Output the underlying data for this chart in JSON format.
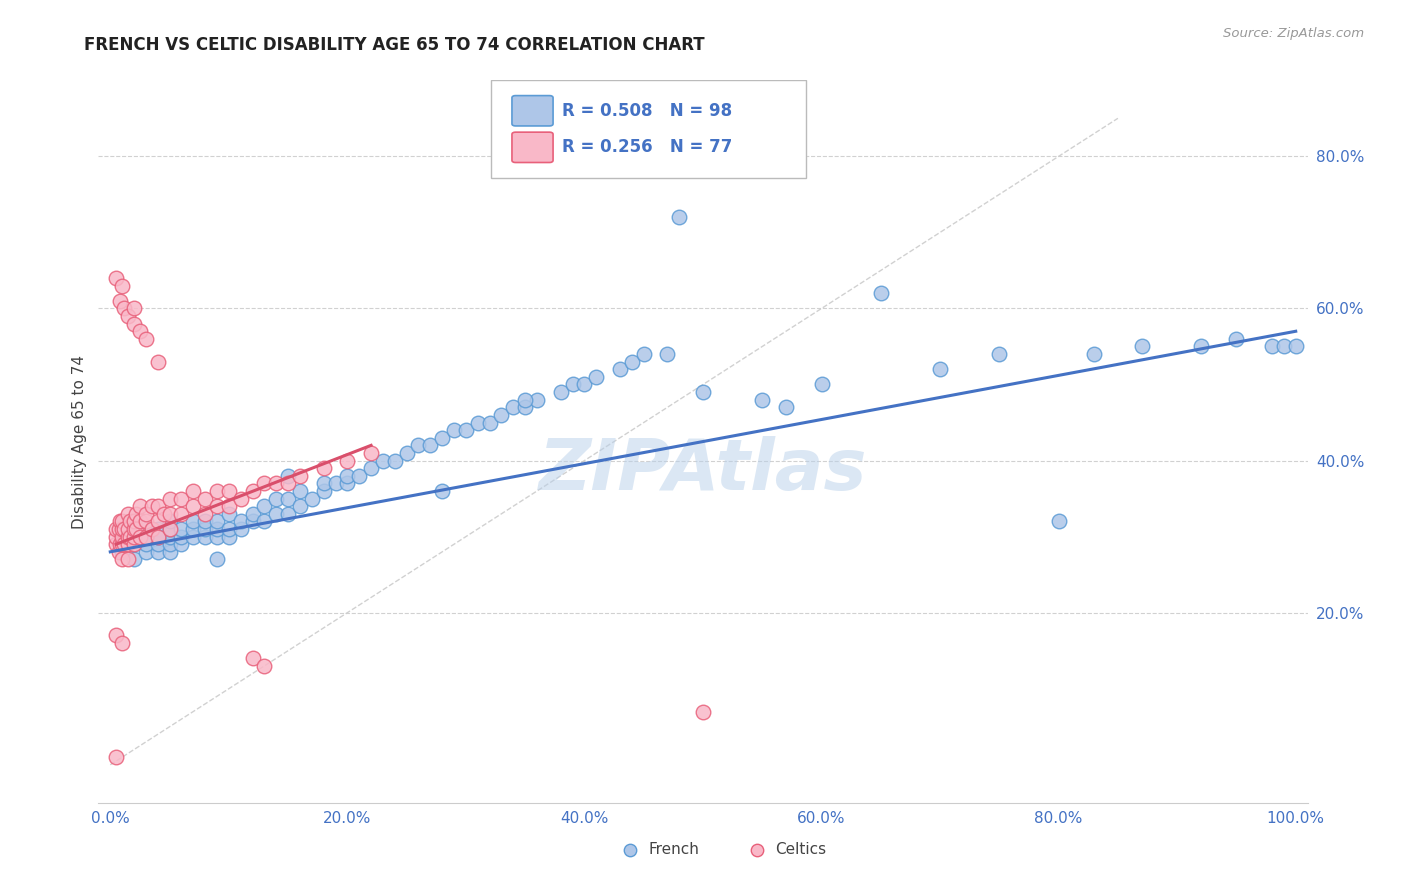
{
  "title": "FRENCH VS CELTIC DISABILITY AGE 65 TO 74 CORRELATION CHART",
  "source": "Source: ZipAtlas.com",
  "ylabel": "Disability Age 65 to 74",
  "xlim": [
    -0.01,
    1.01
  ],
  "ylim": [
    -0.05,
    0.9
  ],
  "xticks": [
    0.0,
    0.2,
    0.4,
    0.6,
    0.8,
    1.0
  ],
  "xtick_labels": [
    "0.0%",
    "20.0%",
    "40.0%",
    "60.0%",
    "80.0%",
    "100.0%"
  ],
  "ytick_positions": [
    0.2,
    0.4,
    0.6,
    0.8
  ],
  "ytick_labels": [
    "20.0%",
    "40.0%",
    "60.0%",
    "80.0%"
  ],
  "french_R": 0.508,
  "french_N": 98,
  "celtics_R": 0.256,
  "celtics_N": 77,
  "french_color": "#aec6e8",
  "celtics_color": "#f9b8c8",
  "french_edge_color": "#5b9bd5",
  "celtics_edge_color": "#e8607a",
  "french_line_color": "#4472c4",
  "celtics_line_color": "#d94f6b",
  "diagonal_color": "#c8c8c8",
  "text_color": "#4472c4",
  "watermark_color": "#b8d0ea",
  "french_x": [
    0.01,
    0.01,
    0.02,
    0.02,
    0.02,
    0.02,
    0.03,
    0.03,
    0.03,
    0.03,
    0.04,
    0.04,
    0.04,
    0.04,
    0.05,
    0.05,
    0.05,
    0.05,
    0.05,
    0.06,
    0.06,
    0.06,
    0.07,
    0.07,
    0.07,
    0.08,
    0.08,
    0.08,
    0.09,
    0.09,
    0.09,
    0.1,
    0.1,
    0.1,
    0.11,
    0.11,
    0.12,
    0.12,
    0.13,
    0.13,
    0.14,
    0.14,
    0.15,
    0.15,
    0.16,
    0.16,
    0.17,
    0.18,
    0.18,
    0.19,
    0.2,
    0.2,
    0.21,
    0.22,
    0.23,
    0.24,
    0.25,
    0.26,
    0.27,
    0.28,
    0.29,
    0.3,
    0.31,
    0.32,
    0.33,
    0.34,
    0.35,
    0.36,
    0.38,
    0.39,
    0.4,
    0.41,
    0.43,
    0.44,
    0.45,
    0.47,
    0.48,
    0.5,
    0.55,
    0.57,
    0.6,
    0.65,
    0.7,
    0.75,
    0.8,
    0.83,
    0.87,
    0.92,
    0.95,
    0.98,
    0.99,
    1.0,
    0.35,
    0.28,
    0.15,
    0.09,
    0.04,
    0.03
  ],
  "french_y": [
    0.28,
    0.3,
    0.27,
    0.29,
    0.3,
    0.31,
    0.28,
    0.29,
    0.3,
    0.31,
    0.28,
    0.29,
    0.3,
    0.31,
    0.28,
    0.29,
    0.3,
    0.31,
    0.32,
    0.29,
    0.3,
    0.31,
    0.3,
    0.31,
    0.32,
    0.3,
    0.31,
    0.32,
    0.3,
    0.31,
    0.32,
    0.3,
    0.31,
    0.33,
    0.31,
    0.32,
    0.32,
    0.33,
    0.32,
    0.34,
    0.33,
    0.35,
    0.33,
    0.35,
    0.34,
    0.36,
    0.35,
    0.36,
    0.37,
    0.37,
    0.37,
    0.38,
    0.38,
    0.39,
    0.4,
    0.4,
    0.41,
    0.42,
    0.42,
    0.43,
    0.44,
    0.44,
    0.45,
    0.45,
    0.46,
    0.47,
    0.47,
    0.48,
    0.49,
    0.5,
    0.5,
    0.51,
    0.52,
    0.53,
    0.54,
    0.54,
    0.72,
    0.49,
    0.48,
    0.47,
    0.5,
    0.62,
    0.52,
    0.54,
    0.32,
    0.54,
    0.55,
    0.55,
    0.56,
    0.55,
    0.55,
    0.55,
    0.48,
    0.36,
    0.38,
    0.27,
    0.3,
    0.3
  ],
  "celtics_x": [
    0.005,
    0.005,
    0.005,
    0.007,
    0.007,
    0.008,
    0.008,
    0.01,
    0.01,
    0.01,
    0.01,
    0.01,
    0.012,
    0.012,
    0.015,
    0.015,
    0.015,
    0.015,
    0.015,
    0.017,
    0.017,
    0.02,
    0.02,
    0.02,
    0.02,
    0.022,
    0.022,
    0.025,
    0.025,
    0.025,
    0.03,
    0.03,
    0.03,
    0.035,
    0.035,
    0.04,
    0.04,
    0.04,
    0.045,
    0.05,
    0.05,
    0.05,
    0.06,
    0.06,
    0.07,
    0.07,
    0.08,
    0.08,
    0.09,
    0.09,
    0.1,
    0.1,
    0.11,
    0.12,
    0.13,
    0.14,
    0.15,
    0.16,
    0.18,
    0.2,
    0.22,
    0.005,
    0.008,
    0.01,
    0.012,
    0.015,
    0.02,
    0.02,
    0.025,
    0.03,
    0.04,
    0.5,
    0.005,
    0.01,
    0.12,
    0.13,
    0.005
  ],
  "celtics_y": [
    0.29,
    0.3,
    0.31,
    0.28,
    0.31,
    0.29,
    0.32,
    0.27,
    0.29,
    0.3,
    0.31,
    0.32,
    0.29,
    0.31,
    0.27,
    0.29,
    0.3,
    0.31,
    0.33,
    0.3,
    0.32,
    0.29,
    0.3,
    0.31,
    0.32,
    0.31,
    0.33,
    0.3,
    0.32,
    0.34,
    0.3,
    0.32,
    0.33,
    0.31,
    0.34,
    0.3,
    0.32,
    0.34,
    0.33,
    0.31,
    0.33,
    0.35,
    0.33,
    0.35,
    0.34,
    0.36,
    0.33,
    0.35,
    0.34,
    0.36,
    0.34,
    0.36,
    0.35,
    0.36,
    0.37,
    0.37,
    0.37,
    0.38,
    0.39,
    0.4,
    0.41,
    0.64,
    0.61,
    0.63,
    0.6,
    0.59,
    0.58,
    0.6,
    0.57,
    0.56,
    0.53,
    0.07,
    0.17,
    0.16,
    0.14,
    0.13,
    0.01
  ],
  "french_line_x": [
    0.0,
    1.0
  ],
  "french_line_y": [
    0.28,
    0.57
  ],
  "celtics_line_x": [
    0.005,
    0.22
  ],
  "celtics_line_y": [
    0.29,
    0.42
  ]
}
